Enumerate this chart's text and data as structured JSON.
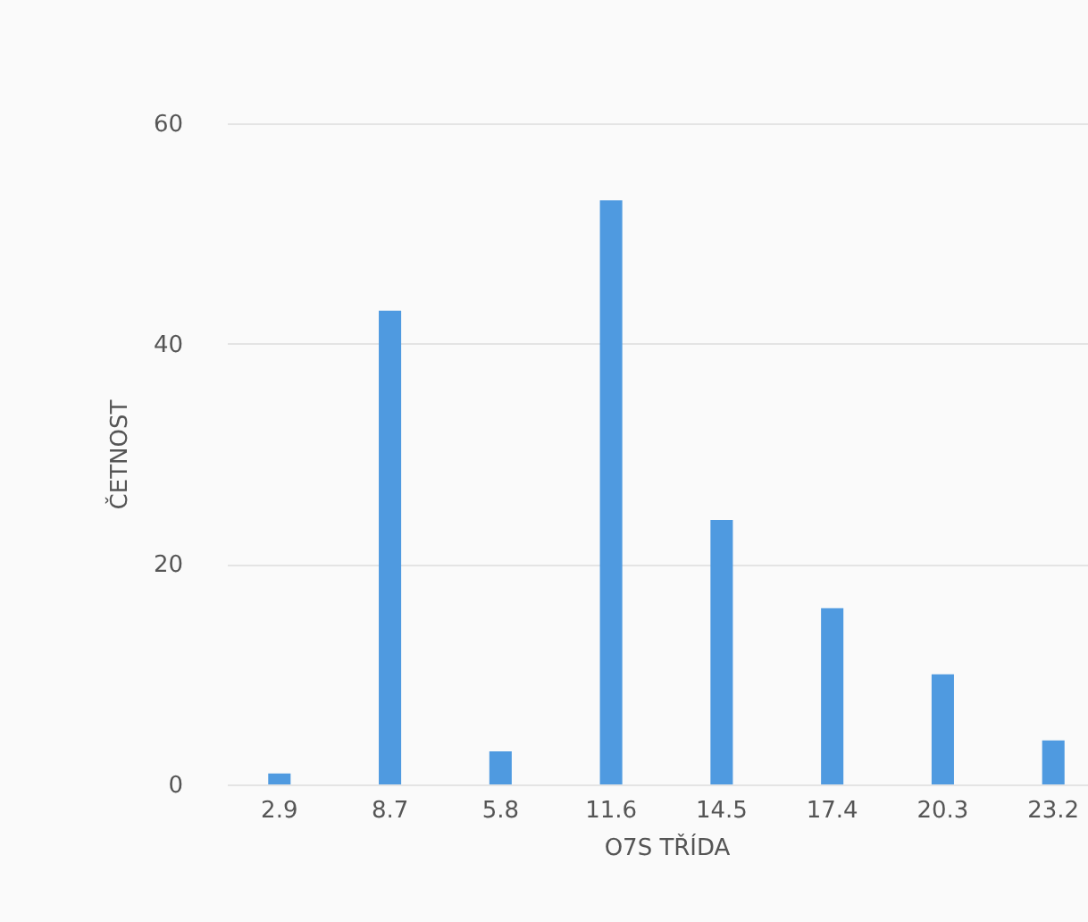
{
  "chart_data": {
    "type": "bar",
    "xlabel": "O7S TŘÍDA",
    "ylabel": "ČETNOST",
    "categories": [
      "2.9",
      "8.7",
      "5.8",
      "11.6",
      "14.5",
      "17.4",
      "20.3",
      "23.2"
    ],
    "values": [
      1,
      43,
      3,
      53,
      24,
      16,
      10,
      4
    ],
    "color": "#4f9ae0",
    "ylim": [
      0,
      60
    ],
    "yticks": [
      0,
      20,
      40,
      60
    ],
    "grid": "y"
  }
}
